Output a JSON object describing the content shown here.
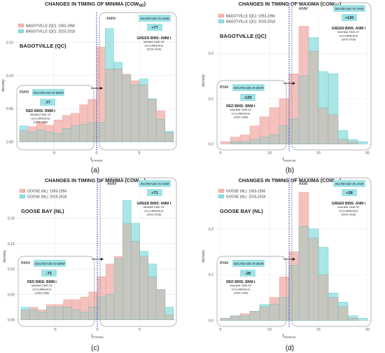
{
  "colors": {
    "early": "#f2b6b2",
    "early_edge": "#e89a96",
    "recent": "#8fdedd",
    "recent_edge": "#5cc8c8",
    "overlap": "#c9c4bc",
    "divider": "#2233cc",
    "callout": "#9fe3e6"
  },
  "chart_data": [
    {
      "type": "bar",
      "title_text": "CHANGES IN TIMING OF MINIMA (COW",
      "title_sub": "ND",
      "title_close": ")",
      "station": "BAGOTVILLE (QC)",
      "legend": [
        "BAGOTVILLE (QC): 1953-1956",
        "BAGOTVILLE (QC): 2015-2018"
      ],
      "ylabel": "density",
      "xlabel_main": "t",
      "xlabel_sub": "(minima)",
      "xlim": [
        -9.5,
        9.5
      ],
      "ylim": [
        -0.01,
        0.18
      ],
      "xticks": [
        -5,
        0,
        5
      ],
      "yticks": [
        0.0,
        0.05,
        0.1,
        0.15
      ],
      "ytick_labels": [
        "0.00",
        "0.05",
        "0.10",
        "0.15"
      ],
      "bin_width": 1,
      "bin_starts": [
        -9,
        -8,
        -7,
        -6,
        -5,
        -4,
        -3,
        -2,
        -1,
        0,
        1,
        2,
        3,
        4,
        5,
        6,
        7,
        8
      ],
      "early_values": [
        0.017,
        0.023,
        0.03,
        0.025,
        0.033,
        0.04,
        0.043,
        0.056,
        0.064,
        0.143,
        0.11,
        0.11,
        0.102,
        0.092,
        0.086,
        0.064,
        0.047,
        0.014
      ],
      "recent_values": [
        0.024,
        0.015,
        0.018,
        0.015,
        0.013,
        0.02,
        0.024,
        0.026,
        0.029,
        0.029,
        0.171,
        0.12,
        0.1,
        0.086,
        0.095,
        0.065,
        0.034,
        0.016
      ],
      "divider_x": 0,
      "left_group": "BMM",
      "left_callout": "DECREASE IN BMM",
      "left_value": "-77",
      "left_note": [
        "RED BINS: BMM t",
        "MINIMA TIME OF",
        "OCCURRENCE",
        "(1953-1956)"
      ],
      "right_group": "AMM",
      "right_callout": "INCREASE IN AMM",
      "right_value": "+77",
      "right_note": [
        "GREEN BINS: AMM t",
        "MINIMA TIME OF",
        "OCCURRENCE",
        "(2015-2018)"
      ],
      "panel_label": "(a)"
    },
    {
      "type": "bar",
      "title_text": "CHANGES IN TIMING OF MAXIMA (COW",
      "title_sub": "ND",
      "title_close": ")",
      "station": "BAGOTVILLE (QC)",
      "legend": [
        "BAGOTVILLE (QC): 1953-1956",
        "BAGOTVILLE (QC): 2015-2018"
      ],
      "ylabel": "density",
      "xlabel_main": "t",
      "xlabel_sub": "(maxima)",
      "xlim": [
        4.5,
        20.5
      ],
      "ylim": [
        -0.01,
        0.29
      ],
      "xticks": [
        5,
        10,
        15,
        20
      ],
      "yticks": [
        0.0,
        0.1,
        0.2
      ],
      "ytick_labels": [
        "0.0",
        "0.1",
        "0.2"
      ],
      "bin_width": 1,
      "bin_starts": [
        5,
        6,
        7,
        8,
        9,
        10,
        11,
        12,
        13,
        14,
        15,
        16,
        17,
        18,
        19
      ],
      "early_values": [
        0.005,
        0.015,
        0.02,
        0.04,
        0.06,
        0.08,
        0.1,
        0.155,
        0.26,
        0.205,
        0.08,
        0.065,
        0.01,
        0.005,
        0.0
      ],
      "recent_values": [
        0.0,
        0.005,
        0.005,
        0.01,
        0.015,
        0.02,
        0.04,
        0.055,
        0.15,
        0.235,
        0.16,
        0.155,
        0.03,
        0.01,
        0.005
      ],
      "divider_x": 12,
      "left_group": "BNM",
      "left_callout": "DECREASE IN BNM",
      "left_value": "-120",
      "left_note": [
        "RED BINS: BNM t",
        "MAXIMA TIME OF",
        "OCCURRENCE",
        "(1953-1956)"
      ],
      "right_group": "ANM",
      "right_callout": "INCREASE IN ANM",
      "right_value": "+120",
      "right_note": [
        "GREEN BINS: ANM t",
        "MAXIMA TIME OF",
        "OCCURRENCE",
        "(2015-2018)"
      ],
      "panel_label": "(b)"
    },
    {
      "type": "bar",
      "title_text": "CHANGES IN TIMING OF MINIMA (COW",
      "title_sub": "ND",
      "title_close": ")",
      "station": "GOOSE BAY (NL)",
      "legend": [
        "GOOSE (NL): 1953-1956",
        "GOOSE (NL): 2015-2018"
      ],
      "ylabel": "density",
      "xlabel_main": "t",
      "xlabel_sub": "(minima)",
      "xlim": [
        -9.5,
        9.5
      ],
      "ylim": [
        -0.01,
        0.26
      ],
      "xticks": [
        -5,
        0,
        5
      ],
      "yticks": [
        0.0,
        0.05,
        0.1,
        0.15,
        0.2
      ],
      "ytick_labels": [
        "0.00",
        "0.05",
        "0.10",
        "0.15",
        "0.20"
      ],
      "bin_width": 1,
      "bin_starts": [
        -9,
        -8,
        -7,
        -6,
        -5,
        -4,
        -3,
        -2,
        -1,
        0,
        1,
        2,
        3,
        4,
        5,
        6,
        7,
        8
      ],
      "early_values": [
        0.02,
        0.025,
        0.02,
        0.03,
        0.03,
        0.04,
        0.04,
        0.045,
        0.055,
        0.085,
        0.11,
        0.125,
        0.19,
        0.155,
        0.125,
        0.085,
        0.06,
        0.01
      ],
      "recent_values": [
        0.025,
        0.02,
        0.015,
        0.025,
        0.025,
        0.025,
        0.02,
        0.015,
        0.025,
        0.045,
        0.05,
        0.12,
        0.235,
        0.19,
        0.135,
        0.11,
        0.06,
        0.025
      ],
      "divider_x": 0,
      "left_group": "BMM",
      "left_callout": "DECREASE IN BMM",
      "left_value": "-71",
      "left_note": [
        "RED BINS: BMM t",
        "MINIMA TIME OF",
        "OCCURRENCE",
        "(1953-1956)"
      ],
      "right_group": "AMM",
      "right_callout": "INCREASE IN AMM",
      "right_value": "+71",
      "right_note": [
        "GREEN BINS: AMM t",
        "MINIMA TIME OF",
        "OCCURRENCE",
        "(2015-2018)"
      ],
      "panel_label": "(c)"
    },
    {
      "type": "bar",
      "title_text": "CHANGES IN TIMING OF MAXIMA (COW",
      "title_sub": "ND",
      "title_close": ")",
      "station": "GOOSE BAY (NL)",
      "legend": [
        "GOOSE (NL): 1953-1956",
        "GOOSE (NL): 2015-2018"
      ],
      "ylabel": "density",
      "xlabel_main": "t",
      "xlabel_sub": "(maxima)",
      "xlim": [
        4.5,
        20.5
      ],
      "ylim": [
        -0.01,
        0.29
      ],
      "xticks": [
        5,
        10,
        15,
        20
      ],
      "yticks": [
        0.0,
        0.1,
        0.2
      ],
      "ytick_labels": [
        "0.0",
        "0.1",
        "0.2"
      ],
      "bin_width": 1,
      "bin_starts": [
        5,
        6,
        7,
        8,
        9,
        10,
        11,
        12,
        13,
        14,
        15,
        16,
        17,
        18,
        19
      ],
      "early_values": [
        0.005,
        0.01,
        0.015,
        0.02,
        0.03,
        0.05,
        0.095,
        0.15,
        0.28,
        0.18,
        0.1,
        0.05,
        0.03,
        0.005,
        0.0
      ],
      "recent_values": [
        0.005,
        0.01,
        0.01,
        0.02,
        0.035,
        0.035,
        0.05,
        0.12,
        0.205,
        0.2,
        0.16,
        0.06,
        0.04,
        0.01,
        0.005
      ],
      "divider_x": 12,
      "left_group": "BNM",
      "left_callout": "DECREASE IN BNM",
      "left_value": "-28",
      "left_note": [
        "RED BINS: BNM t",
        "MAXIMA TIME OF",
        "OCCURRENCE",
        "(1953-1956)"
      ],
      "right_group": "ANM",
      "right_callout": "INCREASE IN ANM",
      "right_value": "+28",
      "right_note": [
        "GREEN BINS: ANM t",
        "MAXIMA TIME OF",
        "OCCURRENCE",
        "(2015-2018)"
      ],
      "panel_label": "(d)"
    }
  ]
}
